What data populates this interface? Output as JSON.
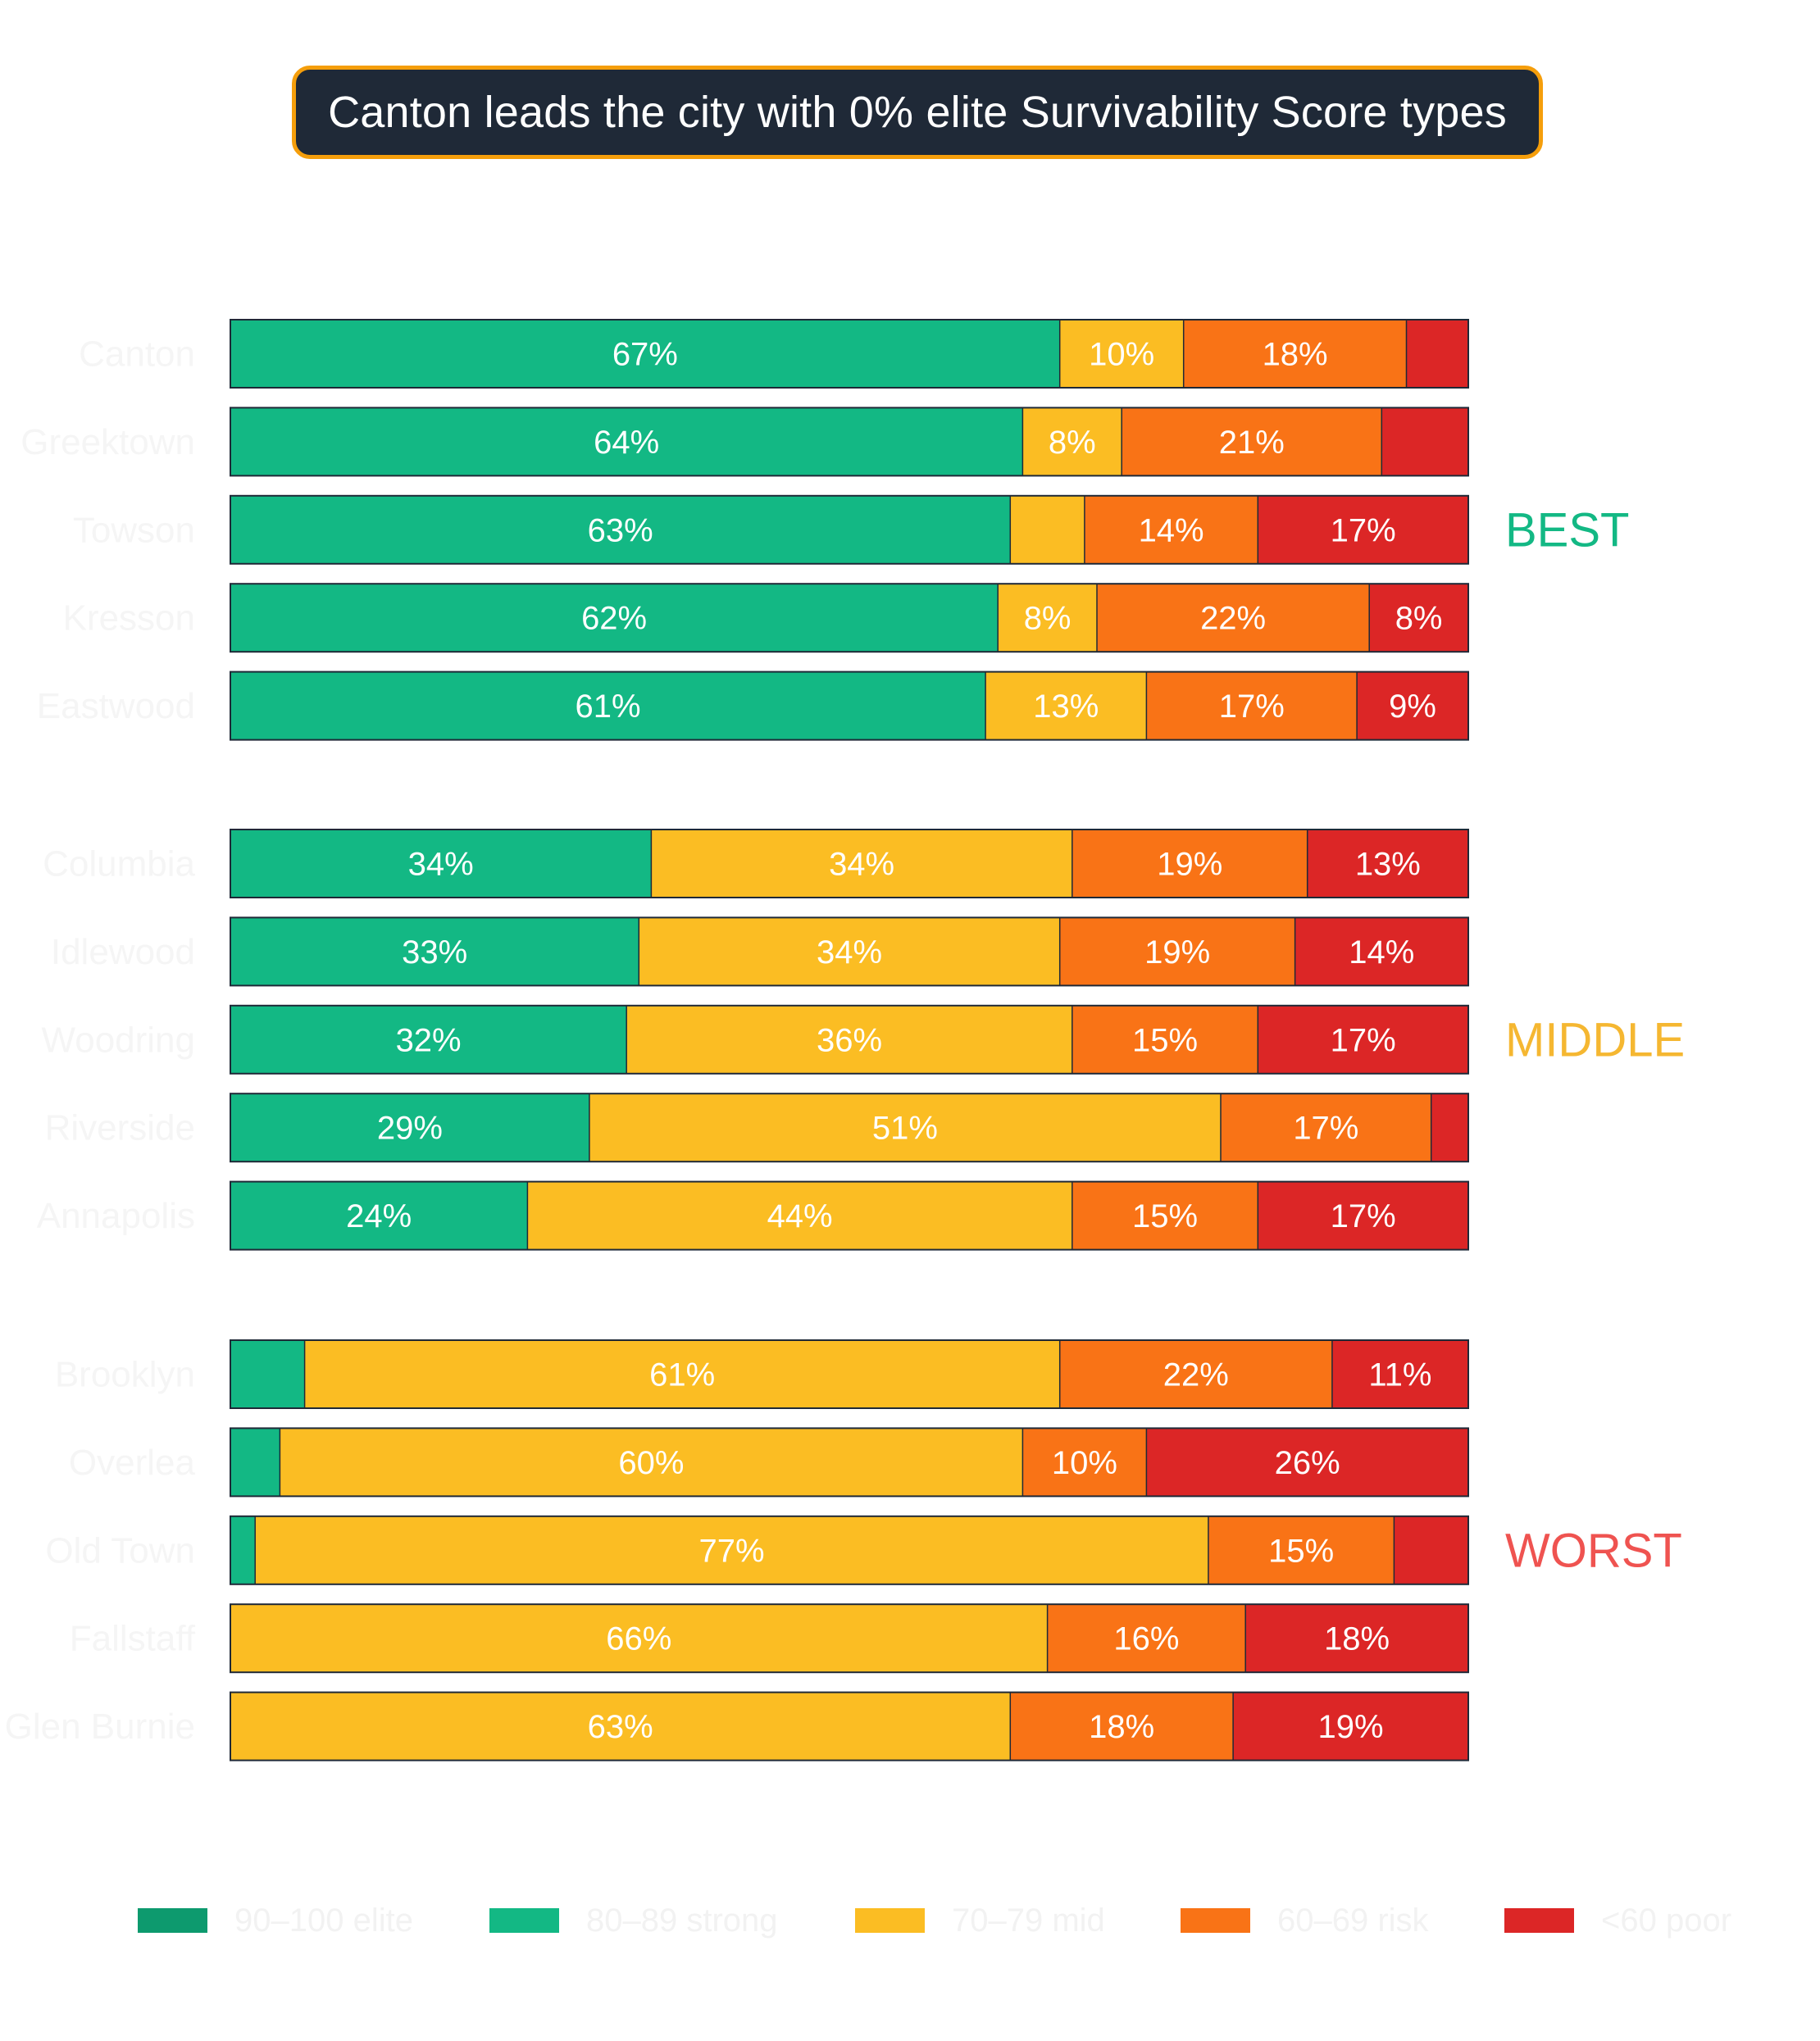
{
  "title": "Canton leads the city with 0% elite Survivability Score types",
  "colors": {
    "elite": "#0d9a6e",
    "strong": "#13b884",
    "mid": "#fbbd23",
    "risk": "#f97316",
    "poor": "#dc2626",
    "row_label": "#f5f5f5",
    "legend_label": "#f2f2f2",
    "bar_outline": "#1f2937",
    "title_bg": "#1f2937",
    "title_border": "#f59e0b",
    "best": "#13b884",
    "middle": "#f5b731",
    "worst": "#ef5350"
  },
  "chart_data": {
    "type": "bar",
    "orientation": "horizontal",
    "stacked": "percent",
    "categories": [
      "Canton",
      "Greektown",
      "Towson",
      "Kresson",
      "Eastwood",
      "Columbia",
      "Idlewood",
      "Woodring",
      "Riverside",
      "Annapolis",
      "Brooklyn",
      "Overlea",
      "Old Town",
      "Fallstaff",
      "Glen Burnie"
    ],
    "series": [
      {
        "name": "90–100 elite",
        "key": "elite",
        "values": [
          0,
          0,
          0,
          0,
          0,
          0,
          0,
          0,
          0,
          0,
          0,
          0,
          0,
          0,
          0
        ]
      },
      {
        "name": "80–89 strong",
        "key": "strong",
        "values": [
          67,
          64,
          63,
          62,
          61,
          34,
          33,
          32,
          29,
          24,
          6,
          4,
          2,
          0,
          0
        ]
      },
      {
        "name": "70–79 mid",
        "key": "mid",
        "values": [
          10,
          8,
          6,
          8,
          13,
          34,
          34,
          36,
          51,
          44,
          61,
          60,
          77,
          66,
          63
        ]
      },
      {
        "name": "60–69 risk",
        "key": "risk",
        "values": [
          18,
          21,
          14,
          22,
          17,
          19,
          19,
          15,
          17,
          15,
          22,
          10,
          15,
          16,
          18
        ]
      },
      {
        "name": "<60 poor",
        "key": "poor",
        "values": [
          5,
          7,
          17,
          8,
          9,
          13,
          14,
          17,
          3,
          17,
          11,
          26,
          6,
          18,
          19
        ]
      }
    ],
    "groups": [
      {
        "label": "BEST",
        "categories": [
          "Canton",
          "Greektown",
          "Towson",
          "Kresson",
          "Eastwood"
        ]
      },
      {
        "label": "MIDDLE",
        "categories": [
          "Columbia",
          "Idlewood",
          "Woodring",
          "Riverside",
          "Annapolis"
        ]
      },
      {
        "label": "WORST",
        "categories": [
          "Brooklyn",
          "Overlea",
          "Old Town",
          "Fallstaff",
          "Glen Burnie"
        ]
      }
    ],
    "value_labels_shown_when_at_least": 8,
    "value_suffix": "%",
    "xlim": [
      0,
      100
    ],
    "legend": {
      "position": "bottom"
    }
  }
}
